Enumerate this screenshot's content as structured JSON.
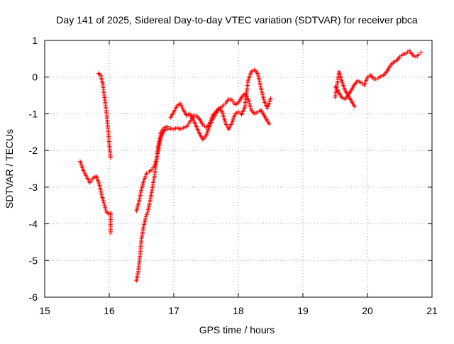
{
  "chart_data": {
    "type": "scatter",
    "title": "Day 141 of 2025, Sidereal Day-to-day VTEC variation (SDTVAR) for receiver pbca",
    "xlabel": "GPS time / hours",
    "ylabel": "SDTVAR / TECUs",
    "xlim": [
      15,
      21
    ],
    "ylim": [
      -6,
      1
    ],
    "xticks": [
      15,
      16,
      17,
      18,
      19,
      20,
      21
    ],
    "yticks": [
      -6,
      -5,
      -4,
      -3,
      -2,
      -1,
      0,
      1
    ],
    "grid": true,
    "marker": "+",
    "color": "#ff0000",
    "series": [
      {
        "name": "sdtvar",
        "segments": [
          [
            [
              15.55,
              -2.3
            ],
            [
              15.6,
              -2.55
            ],
            [
              15.65,
              -2.72
            ],
            [
              15.7,
              -2.88
            ],
            [
              15.75,
              -2.75
            ],
            [
              15.8,
              -2.7
            ],
            [
              15.85,
              -2.95
            ],
            [
              15.88,
              -3.2
            ],
            [
              15.92,
              -3.45
            ],
            [
              15.95,
              -3.65
            ],
            [
              15.98,
              -3.72
            ],
            [
              16.02,
              -3.7
            ],
            [
              16.02,
              -4.25
            ]
          ],
          [
            [
              15.83,
              0.1
            ],
            [
              15.87,
              0.05
            ],
            [
              15.9,
              -0.2
            ],
            [
              15.93,
              -0.6
            ],
            [
              15.96,
              -1.0
            ],
            [
              15.98,
              -1.4
            ],
            [
              16.0,
              -1.8
            ],
            [
              16.02,
              -2.2
            ]
          ],
          [
            [
              16.42,
              -5.55
            ],
            [
              16.45,
              -5.3
            ],
            [
              16.48,
              -4.8
            ],
            [
              16.5,
              -4.4
            ],
            [
              16.53,
              -4.1
            ],
            [
              16.56,
              -3.85
            ],
            [
              16.6,
              -3.65
            ],
            [
              16.63,
              -3.4
            ],
            [
              16.66,
              -3.1
            ],
            [
              16.7,
              -2.7
            ],
            [
              16.73,
              -2.3
            ],
            [
              16.76,
              -1.85
            ],
            [
              16.8,
              -1.5
            ],
            [
              16.85,
              -1.38
            ],
            [
              16.9,
              -1.35
            ]
          ],
          [
            [
              16.42,
              -3.65
            ],
            [
              16.46,
              -3.4
            ],
            [
              16.5,
              -3.05
            ],
            [
              16.54,
              -2.8
            ],
            [
              16.58,
              -2.62
            ],
            [
              16.62,
              -2.58
            ],
            [
              16.66,
              -2.52
            ],
            [
              16.7,
              -2.42
            ],
            [
              16.73,
              -2.25
            ],
            [
              16.76,
              -2.0
            ],
            [
              16.8,
              -1.65
            ],
            [
              16.85,
              -1.45
            ],
            [
              16.9,
              -1.42
            ],
            [
              16.95,
              -1.4
            ],
            [
              17.0,
              -1.42
            ],
            [
              17.05,
              -1.38
            ],
            [
              17.1,
              -1.42
            ],
            [
              17.15,
              -1.38
            ],
            [
              17.2,
              -1.35
            ],
            [
              17.25,
              -1.22
            ],
            [
              17.3,
              -1.05
            ],
            [
              17.35,
              -1.05
            ],
            [
              17.4,
              -1.15
            ],
            [
              17.45,
              -1.3
            ],
            [
              17.5,
              -1.38
            ],
            [
              17.55,
              -1.28
            ],
            [
              17.6,
              -1.05
            ],
            [
              17.65,
              -0.95
            ],
            [
              17.7,
              -0.85
            ],
            [
              17.75,
              -0.8
            ],
            [
              17.8,
              -0.72
            ],
            [
              17.85,
              -0.6
            ],
            [
              17.9,
              -0.62
            ],
            [
              17.95,
              -0.75
            ],
            [
              18.0,
              -0.7
            ],
            [
              18.05,
              -0.55
            ],
            [
              18.1,
              -0.45
            ],
            [
              18.15,
              -0.58
            ],
            [
              18.2,
              -0.9
            ],
            [
              18.25,
              -1.0
            ],
            [
              18.3,
              -0.95
            ],
            [
              18.35,
              -0.9
            ],
            [
              18.4,
              -1.05
            ],
            [
              18.45,
              -1.2
            ],
            [
              18.48,
              -1.28
            ]
          ],
          [
            [
              16.95,
              -1.1
            ],
            [
              17.0,
              -0.95
            ],
            [
              17.05,
              -0.78
            ],
            [
              17.1,
              -0.72
            ],
            [
              17.15,
              -0.9
            ],
            [
              17.2,
              -1.05
            ],
            [
              17.25,
              -1.0
            ],
            [
              17.3,
              -1.15
            ],
            [
              17.35,
              -1.35
            ],
            [
              17.4,
              -1.55
            ],
            [
              17.45,
              -1.7
            ],
            [
              17.5,
              -1.6
            ],
            [
              17.55,
              -1.35
            ],
            [
              17.6,
              -1.15
            ],
            [
              17.65,
              -1.0
            ],
            [
              17.7,
              -0.85
            ],
            [
              17.75,
              -0.95
            ],
            [
              17.8,
              -1.25
            ],
            [
              17.85,
              -1.42
            ],
            [
              17.9,
              -1.25
            ],
            [
              17.95,
              -1.0
            ],
            [
              18.0,
              -0.95
            ],
            [
              18.05,
              -1.02
            ],
            [
              18.1,
              -0.82
            ],
            [
              18.15,
              -0.1
            ],
            [
              18.2,
              0.15
            ],
            [
              18.25,
              0.2
            ],
            [
              18.3,
              0.1
            ],
            [
              18.35,
              -0.3
            ],
            [
              18.4,
              -0.65
            ],
            [
              18.45,
              -0.85
            ],
            [
              18.5,
              -0.58
            ]
          ],
          [
            [
              19.5,
              -0.55
            ],
            [
              19.53,
              -0.2
            ],
            [
              19.56,
              0.15
            ],
            [
              19.6,
              -0.1
            ],
            [
              19.65,
              -0.35
            ],
            [
              19.7,
              -0.5
            ],
            [
              19.75,
              -0.65
            ],
            [
              19.8,
              -0.8
            ]
          ],
          [
            [
              19.5,
              -0.25
            ],
            [
              19.55,
              -0.4
            ],
            [
              19.6,
              -0.55
            ],
            [
              19.65,
              -0.6
            ],
            [
              19.7,
              -0.5
            ],
            [
              19.75,
              -0.35
            ],
            [
              19.8,
              -0.2
            ],
            [
              19.85,
              -0.1
            ],
            [
              19.9,
              -0.15
            ],
            [
              19.95,
              -0.22
            ],
            [
              20.0,
              0.0
            ],
            [
              20.05,
              0.05
            ],
            [
              20.1,
              -0.05
            ],
            [
              20.15,
              -0.05
            ],
            [
              20.2,
              0.02
            ],
            [
              20.25,
              0.05
            ],
            [
              20.3,
              0.15
            ],
            [
              20.35,
              0.3
            ],
            [
              20.4,
              0.4
            ],
            [
              20.45,
              0.45
            ],
            [
              20.5,
              0.55
            ],
            [
              20.55,
              0.62
            ],
            [
              20.6,
              0.65
            ],
            [
              20.65,
              0.72
            ],
            [
              20.7,
              0.6
            ],
            [
              20.75,
              0.55
            ],
            [
              20.8,
              0.62
            ],
            [
              20.83,
              0.68
            ]
          ]
        ]
      }
    ]
  }
}
